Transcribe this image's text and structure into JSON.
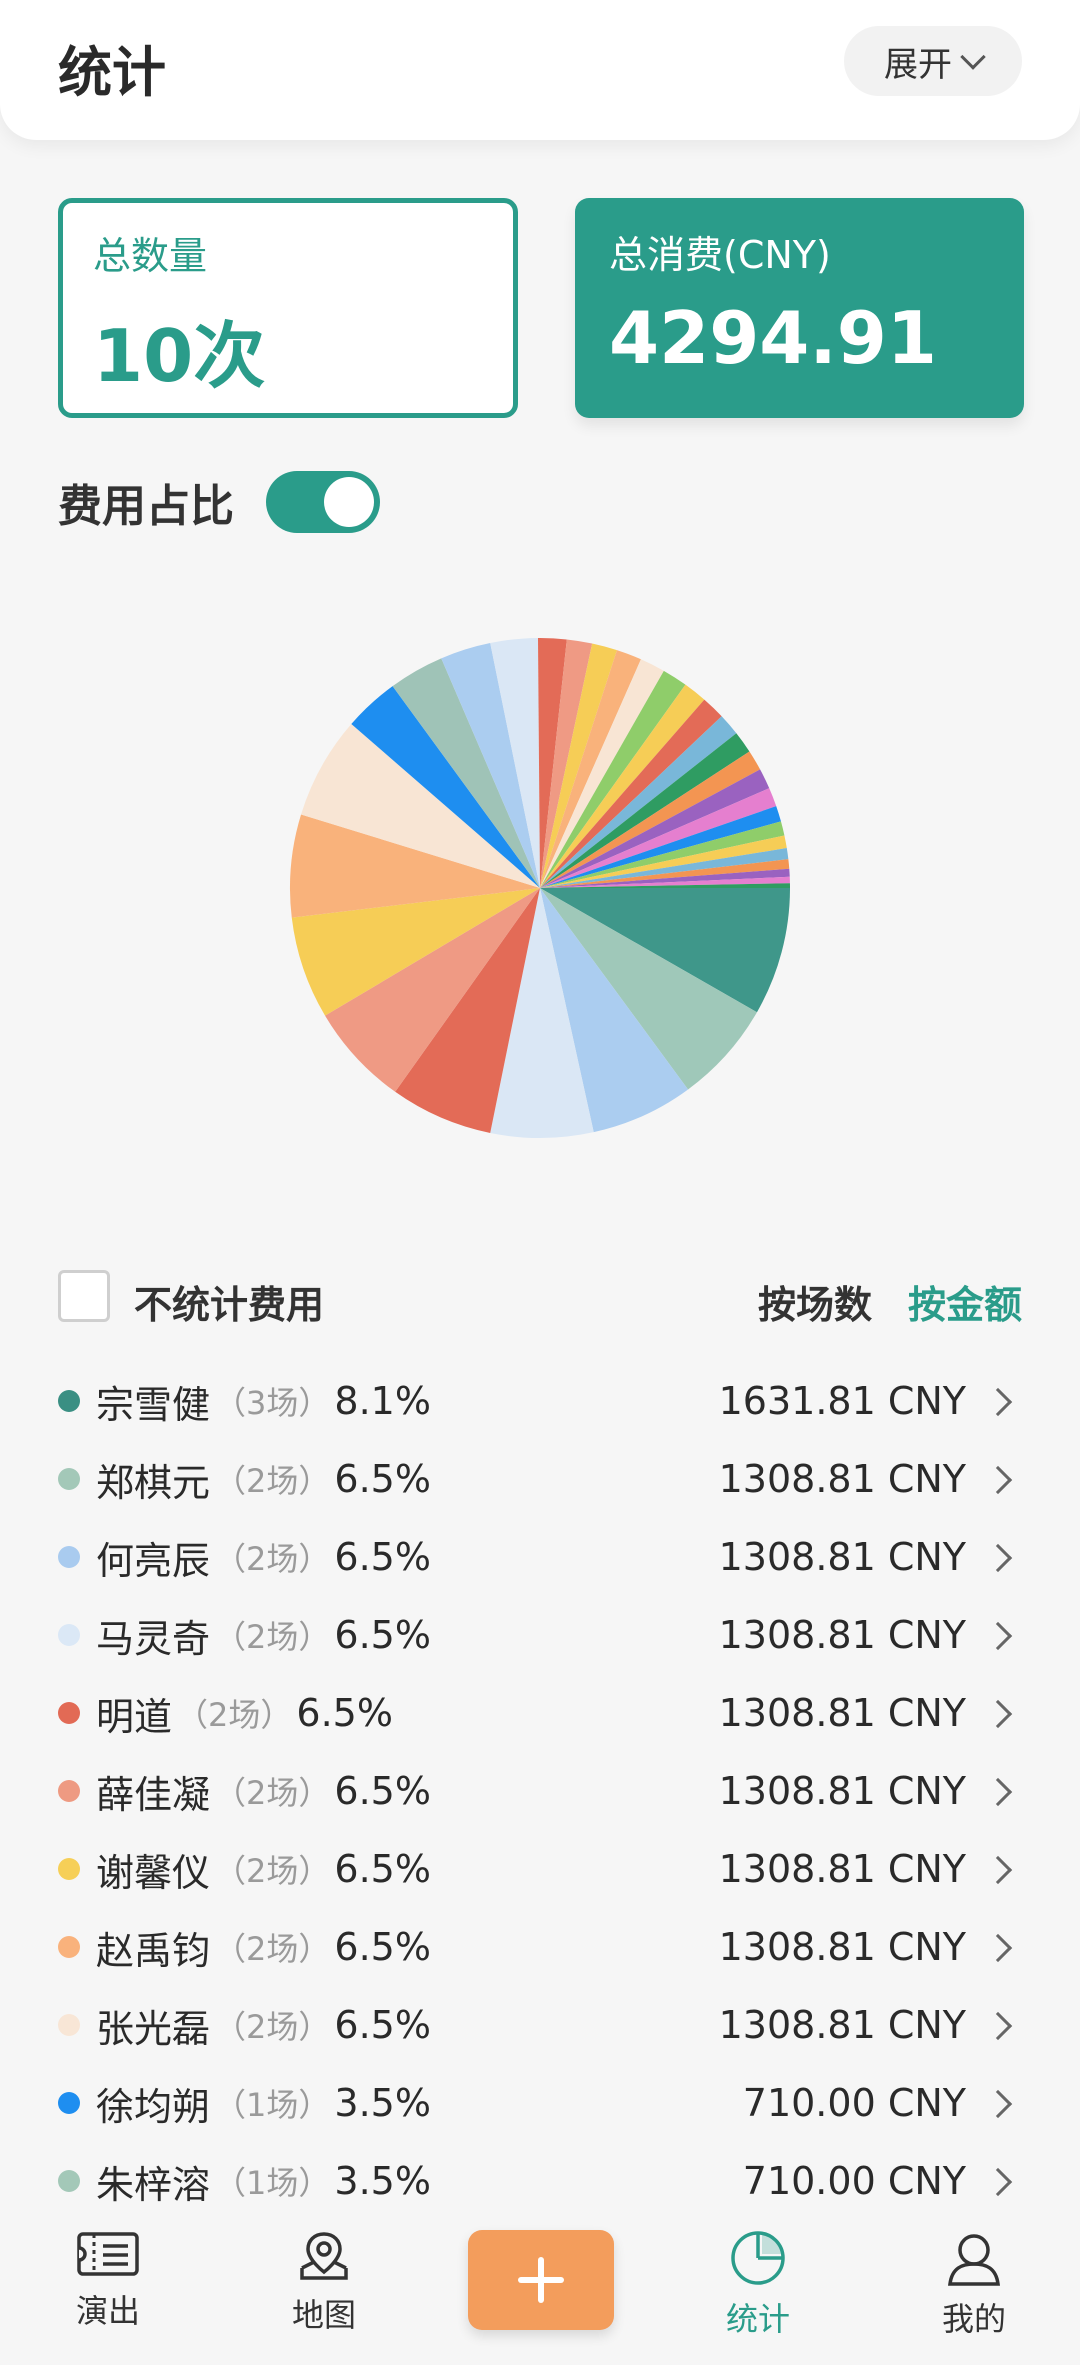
{
  "header": {
    "title": "统计",
    "expand_label": "展开"
  },
  "summary": {
    "count_label": "总数量",
    "count_value": "10次",
    "total_label": "总消费(CNY)",
    "total_value": "4294.91"
  },
  "ratio": {
    "label": "费用占比",
    "enabled": true
  },
  "filter": {
    "exclude_label": "不统计费用",
    "exclude_checked": false,
    "sort_by_count": "按场数",
    "sort_by_amount": "按金额",
    "active_sort": "按金额"
  },
  "list": [
    {
      "dot": "#3a8f83",
      "name": "宗雪健",
      "count": "（3场）",
      "pct": "8.1%",
      "amount": "1631.81 CNY"
    },
    {
      "dot": "#a3c8b8",
      "name": "郑棋元",
      "count": "（2场）",
      "pct": "6.5%",
      "amount": "1308.81 CNY"
    },
    {
      "dot": "#a9cbef",
      "name": "何亮辰",
      "count": "（2场）",
      "pct": "6.5%",
      "amount": "1308.81 CNY"
    },
    {
      "dot": "#dbe8f6",
      "name": "马灵奇",
      "count": "（2场）",
      "pct": "6.5%",
      "amount": "1308.81 CNY"
    },
    {
      "dot": "#e26a55",
      "name": "明道",
      "count": "（2场）",
      "pct": "6.5%",
      "amount": "1308.81 CNY"
    },
    {
      "dot": "#ee9a82",
      "name": "薛佳凝",
      "count": "（2场）",
      "pct": "6.5%",
      "amount": "1308.81 CNY"
    },
    {
      "dot": "#f6cf57",
      "name": "谢馨仪",
      "count": "（2场）",
      "pct": "6.5%",
      "amount": "1308.81 CNY"
    },
    {
      "dot": "#f9b27c",
      "name": "赵禹钧",
      "count": "（2场）",
      "pct": "6.5%",
      "amount": "1308.81 CNY"
    },
    {
      "dot": "#f8e6d6",
      "name": "张光磊",
      "count": "（2场）",
      "pct": "6.5%",
      "amount": "1308.81 CNY"
    },
    {
      "dot": "#1e8ef0",
      "name": "徐均朔",
      "count": "（1场）",
      "pct": "3.5%",
      "amount": "710.00 CNY"
    },
    {
      "dot": "#a3c8b8",
      "name": "朱梓溶",
      "count": "（1场）",
      "pct": "3.5%",
      "amount": "710.00 CNY"
    }
  ],
  "chart_data": {
    "type": "pie",
    "title": "",
    "slices": [
      {
        "label": "宗雪健",
        "value": 8.1,
        "color": "#3f978a"
      },
      {
        "label": "郑棋元",
        "value": 6.5,
        "color": "#9fc8b9"
      },
      {
        "label": "何亮辰",
        "value": 6.5,
        "color": "#abcdf0"
      },
      {
        "label": "马灵奇",
        "value": 6.5,
        "color": "#dae7f5"
      },
      {
        "label": "明道",
        "value": 6.5,
        "color": "#e36b57"
      },
      {
        "label": "薛佳凝",
        "value": 6.5,
        "color": "#ef9a84"
      },
      {
        "label": "谢馨仪",
        "value": 6.5,
        "color": "#f6cd56"
      },
      {
        "label": "赵禹钧",
        "value": 6.5,
        "color": "#f9b27b"
      },
      {
        "label": "张光磊",
        "value": 6.5,
        "color": "#f8e5d4"
      },
      {
        "label": "徐均朔",
        "value": 3.5,
        "color": "#1e8ef0"
      },
      {
        "label": "朱梓溶",
        "value": 3.5,
        "color": "#9fc3b7"
      },
      {
        "label": "",
        "value": 3.2,
        "color": "#abcdf0"
      },
      {
        "label": "",
        "value": 3.0,
        "color": "#dae7f5"
      },
      {
        "label": "",
        "value": 1.8,
        "color": "#e36b57"
      },
      {
        "label": "",
        "value": 1.6,
        "color": "#ef9a84"
      },
      {
        "label": "",
        "value": 1.6,
        "color": "#f6cd56"
      },
      {
        "label": "",
        "value": 1.6,
        "color": "#f9b27b"
      },
      {
        "label": "",
        "value": 1.6,
        "color": "#f8e5d4"
      },
      {
        "label": "",
        "value": 1.6,
        "color": "#8fcd6a"
      },
      {
        "label": "",
        "value": 1.5,
        "color": "#f6cd56"
      },
      {
        "label": "",
        "value": 1.5,
        "color": "#e36b57"
      },
      {
        "label": "",
        "value": 1.4,
        "color": "#79b7d9"
      },
      {
        "label": "",
        "value": 1.4,
        "color": "#2f9c62"
      },
      {
        "label": "",
        "value": 1.3,
        "color": "#f39552"
      },
      {
        "label": "",
        "value": 1.3,
        "color": "#9a62c0"
      },
      {
        "label": "",
        "value": 1.2,
        "color": "#e57fcf"
      },
      {
        "label": "",
        "value": 1.0,
        "color": "#1e8ef0"
      },
      {
        "label": "",
        "value": 0.9,
        "color": "#8fcd6a"
      },
      {
        "label": "",
        "value": 0.8,
        "color": "#f6cd56"
      },
      {
        "label": "",
        "value": 0.7,
        "color": "#79b7d9"
      },
      {
        "label": "",
        "value": 0.6,
        "color": "#f39552"
      },
      {
        "label": "",
        "value": 0.5,
        "color": "#9a62c0"
      },
      {
        "label": "",
        "value": 0.4,
        "color": "#e57fcf"
      },
      {
        "label": "",
        "value": 0.3,
        "color": "#2f9c62"
      }
    ]
  },
  "tabbar": {
    "items": [
      {
        "label": "演出",
        "icon": "ticket-icon"
      },
      {
        "label": "地图",
        "icon": "map-pin-icon"
      },
      {
        "label": "",
        "icon": "plus-icon"
      },
      {
        "label": "统计",
        "icon": "pie-chart-icon",
        "active": true
      },
      {
        "label": "我的",
        "icon": "user-icon"
      }
    ],
    "accent": "#2a9c8a",
    "add_color": "#f39d5c"
  }
}
